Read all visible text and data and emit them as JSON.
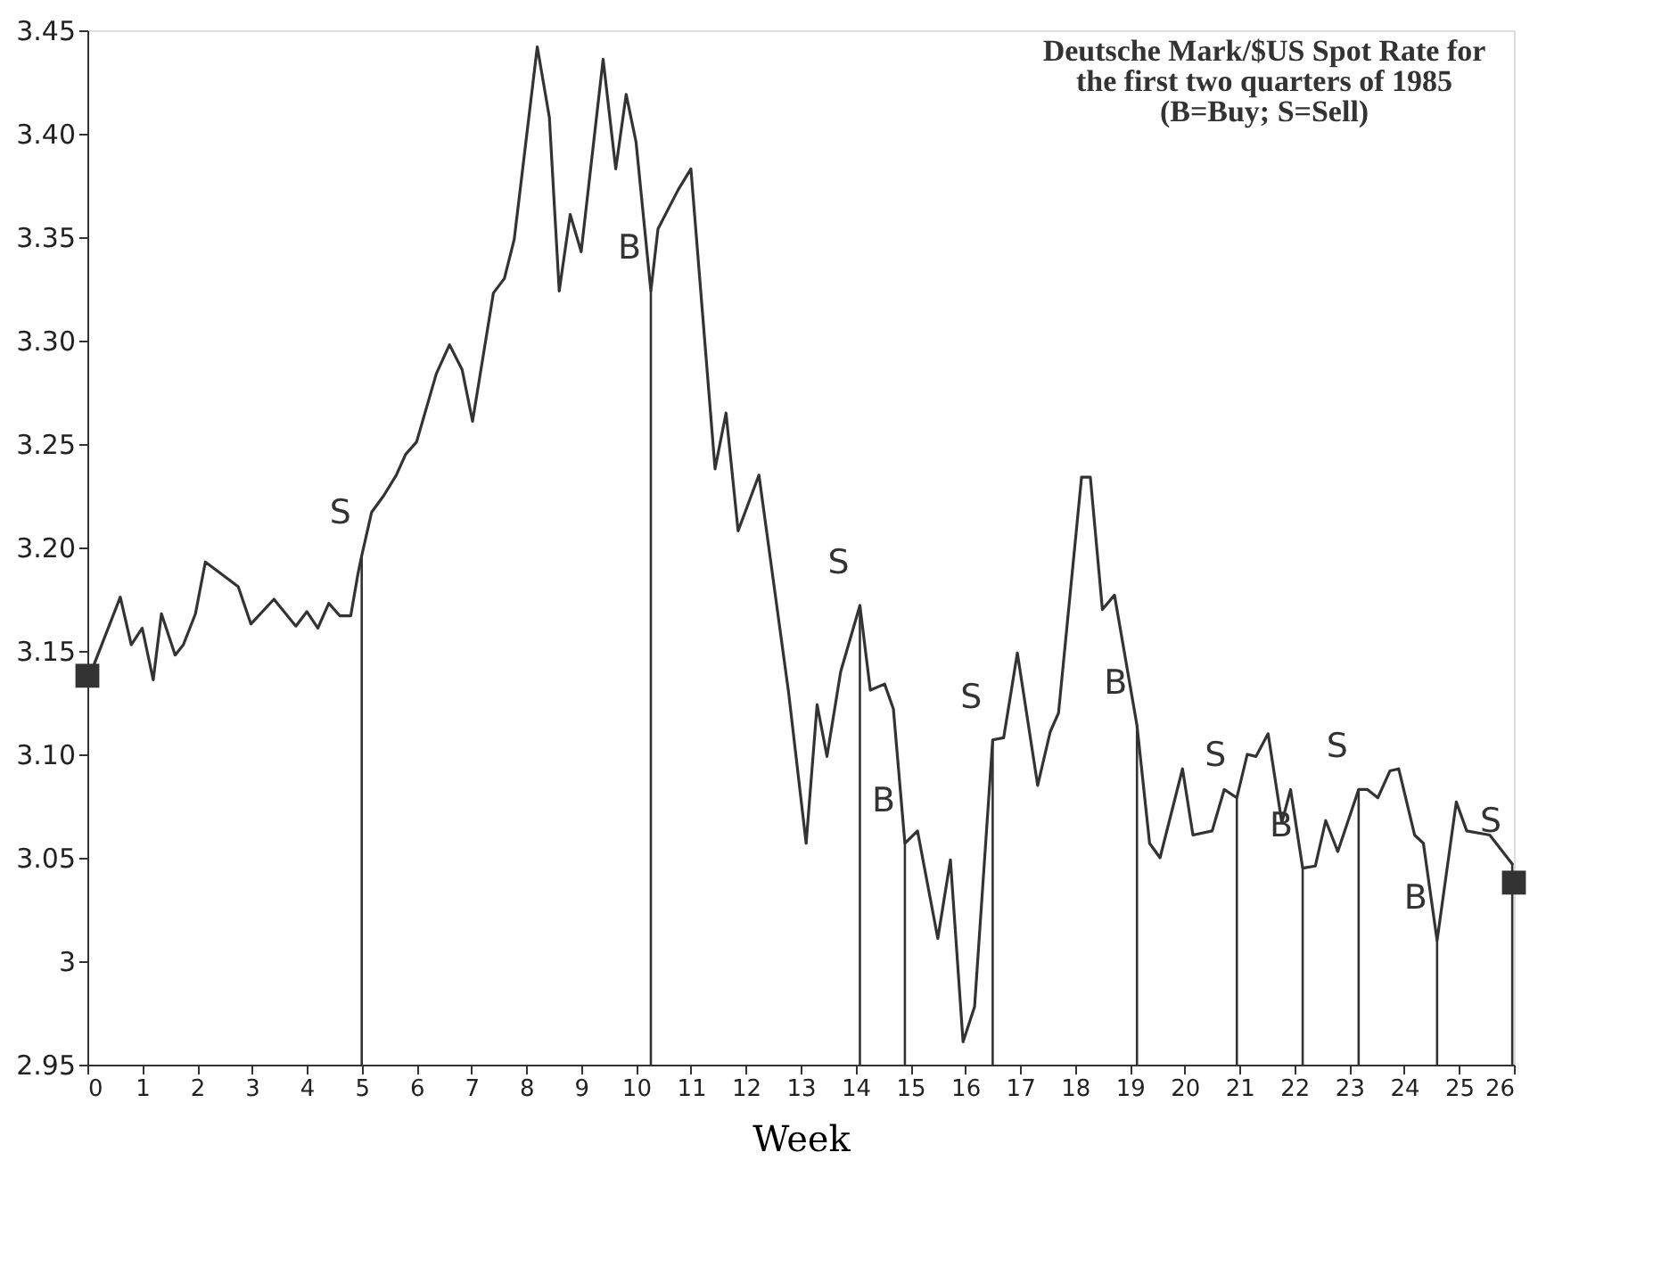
{
  "chart_data": {
    "type": "line",
    "title": "Deutsche Mark/$US Spot Rate for\nthe first two quarters of 1985\n(B=Buy; S=Sell)",
    "xlabel": "Week",
    "series": [
      {
        "color": "#333333",
        "line_style": "solid",
        "marker": "none",
        "x": [
          0.1,
          0.6,
          0.8,
          1.0,
          1.2,
          1.35,
          1.6,
          1.75,
          1.97,
          2.15,
          2.75,
          2.98,
          3.4,
          3.8,
          4.0,
          4.2,
          4.4,
          4.6,
          4.8,
          4.93,
          5.0,
          5.18,
          5.4,
          5.63,
          5.8,
          6.0,
          6.36,
          6.6,
          6.83,
          7.02,
          7.4,
          7.6,
          7.78,
          8.2,
          8.42,
          8.6,
          8.8,
          9.0,
          9.4,
          9.63,
          9.82,
          10.0,
          10.27,
          10.4,
          10.77,
          11.0,
          11.44,
          11.64,
          11.86,
          12.24,
          12.78,
          13.1,
          13.3,
          13.48,
          13.73,
          14.08,
          14.27,
          14.53,
          14.69,
          14.9,
          15.13,
          15.5,
          15.73,
          15.96,
          16.17,
          16.5,
          16.7,
          16.95,
          17.32,
          17.55,
          17.7,
          18.12,
          18.28,
          18.5,
          18.72,
          19.13,
          19.36,
          19.55,
          19.96,
          20.15,
          20.5,
          20.72,
          20.95,
          21.14,
          21.3,
          21.52,
          21.77,
          21.93,
          22.15,
          22.38,
          22.57,
          22.79,
          23.17,
          23.33,
          23.52,
          23.74,
          23.9,
          24.19,
          24.35,
          24.6,
          24.95,
          25.14,
          25.56,
          25.97
        ],
        "values": [
          3.142,
          3.176,
          3.153,
          3.161,
          3.136,
          3.168,
          3.148,
          3.153,
          3.168,
          3.193,
          3.181,
          3.163,
          3.175,
          3.162,
          3.169,
          3.161,
          3.173,
          3.167,
          3.167,
          3.187,
          3.196,
          3.217,
          3.225,
          3.235,
          3.245,
          3.251,
          3.284,
          3.298,
          3.286,
          3.261,
          3.323,
          3.33,
          3.349,
          3.442,
          3.408,
          3.324,
          3.361,
          3.343,
          3.436,
          3.383,
          3.419,
          3.396,
          3.324,
          3.354,
          3.373,
          3.383,
          3.238,
          3.265,
          3.208,
          3.235,
          3.13,
          3.057,
          3.124,
          3.099,
          3.14,
          3.172,
          3.131,
          3.134,
          3.122,
          3.057,
          3.063,
          3.011,
          3.049,
          2.961,
          2.978,
          3.107,
          3.108,
          3.149,
          3.085,
          3.111,
          3.12,
          3.234,
          3.234,
          3.17,
          3.177,
          3.114,
          3.057,
          3.05,
          3.093,
          3.061,
          3.063,
          3.083,
          3.079,
          3.1,
          3.099,
          3.11,
          3.067,
          3.083,
          3.045,
          3.046,
          3.068,
          3.053,
          3.083,
          3.083,
          3.079,
          3.092,
          3.093,
          3.061,
          3.057,
          3.01,
          3.077,
          3.063,
          3.061,
          3.047
        ]
      },
      {
        "type": "scatter",
        "color": "#333333",
        "marker": "square",
        "x": [
          0,
          26
        ],
        "values": [
          3.138,
          3.038
        ]
      }
    ],
    "annotations": [
      {
        "text": "S",
        "x": 5.0,
        "y": 3.196
      },
      {
        "text": "B",
        "x": 10.27,
        "y": 3.324
      },
      {
        "text": "S",
        "x": 14.08,
        "y": 3.172
      },
      {
        "text": "B",
        "x": 14.9,
        "y": 3.057
      },
      {
        "text": "S",
        "x": 16.5,
        "y": 3.107
      },
      {
        "text": "B",
        "x": 19.13,
        "y": 3.114
      },
      {
        "text": "S",
        "x": 20.95,
        "y": 3.079
      },
      {
        "text": "B",
        "x": 22.15,
        "y": 3.045
      },
      {
        "text": "S",
        "x": 23.17,
        "y": 3.083
      },
      {
        "text": "B",
        "x": 24.6,
        "y": 3.01
      },
      {
        "text": "S",
        "x": 25.97,
        "y": 3.047
      }
    ],
    "xlim": [
      0,
      26
    ],
    "xticks": [
      0,
      1,
      2,
      3,
      4,
      5,
      6,
      7,
      8,
      9,
      10,
      11,
      12,
      13,
      14,
      15,
      16,
      17,
      18,
      19,
      20,
      21,
      22,
      23,
      24,
      25,
      26
    ],
    "ylim": [
      2.95,
      3.45
    ],
    "yticks": [
      2.95,
      {
        "value": 3,
        "label": "3"
      },
      3.05,
      {
        "value": 3.1,
        "label": "3.10"
      },
      3.15,
      {
        "value": 3.2,
        "label": "3.20"
      },
      3.25,
      {
        "value": 3.3,
        "label": "3.30"
      },
      3.35,
      {
        "value": 3.4,
        "label": "3.40"
      },
      3.45
    ],
    "grid": false
  }
}
